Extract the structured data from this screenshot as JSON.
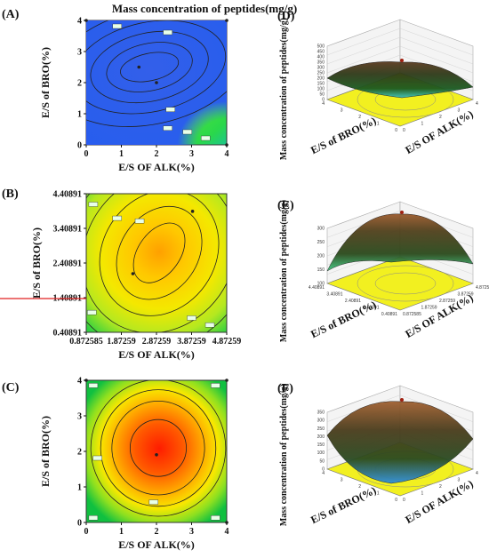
{
  "figure": {
    "top_title": "Mass concentration of  peptides(mg/g)"
  },
  "chart_data": [
    {
      "panel": "(A)",
      "type": "heatmap",
      "subtype": "contour",
      "xlabel": "E/S OF ALK(%)",
      "ylabel": "E/S of BRO(%)",
      "x_ticks": [
        "0",
        "1",
        "2",
        "3",
        "4"
      ],
      "y_ticks": [
        "0",
        "1",
        "2",
        "3",
        "4"
      ],
      "xlim": [
        0,
        4
      ],
      "ylim": [
        0,
        4
      ],
      "center": [
        1.8,
        2.5
      ],
      "design_points": [
        [
          0,
          4
        ],
        [
          4,
          4
        ],
        [
          1.5,
          2.5
        ],
        [
          2,
          2
        ],
        [
          4,
          0
        ]
      ],
      "colors": {
        "low": "#3060ff",
        "mid": "#20e040",
        "high": "#8ee020"
      }
    },
    {
      "panel": "(B)",
      "type": "heatmap",
      "subtype": "contour",
      "xlabel": "E/S OF ALK(%)",
      "ylabel": "E/S of BRO(%)",
      "x_ticks": [
        "0.872585",
        "1.87259",
        "2.87259",
        "3.87259",
        "4.87259"
      ],
      "y_ticks": [
        "0.40891",
        "1.40891",
        "2.40891",
        "3.40891",
        "4.40891"
      ],
      "xlim": [
        0.872585,
        4.87259
      ],
      "ylim": [
        0.40891,
        4.40891
      ],
      "center": [
        2.95,
        2.7
      ],
      "design_points": [
        [
          2.2,
          2.1
        ],
        [
          3.9,
          3.9
        ]
      ],
      "colors": {
        "low": "#20e040",
        "mid": "#f0e000",
        "high": "#ff9000"
      }
    },
    {
      "panel": "(C)",
      "type": "heatmap",
      "subtype": "contour",
      "xlabel": "E/S OF ALK(%)",
      "ylabel": "E/S of BRO(%)",
      "x_ticks": [
        "0",
        "1",
        "2",
        "3",
        "4"
      ],
      "y_ticks": [
        "0",
        "1",
        "2",
        "3",
        "4"
      ],
      "xlim": [
        0,
        4
      ],
      "ylim": [
        0,
        4.2
      ],
      "center": [
        2.05,
        2.2
      ],
      "design_points": [
        [
          0,
          4.2
        ],
        [
          4,
          4.2
        ],
        [
          2,
          2
        ],
        [
          4,
          0
        ]
      ],
      "colors": {
        "low": "#10c040",
        "mid": "#f0e000",
        "high": "#ff2000"
      }
    },
    {
      "panel": "(D)",
      "type": "area",
      "subtype": "surface3d",
      "xlabel": "E/S OF ALK(%)",
      "ylabel": "E/S of BRO(%)",
      "zlabel": "Mass concentration of  peptides(mg/g)",
      "z_ticks": [
        "0",
        "50",
        "100",
        "150",
        "200",
        "250",
        "300",
        "350",
        "400",
        "450",
        "500"
      ],
      "x_ticks": [
        "0",
        "1",
        "2",
        "3",
        "4"
      ],
      "y_ticks": [
        "0",
        "1",
        "2",
        "3",
        "4"
      ]
    },
    {
      "panel": "(E)",
      "type": "area",
      "subtype": "surface3d",
      "xlabel": "E/S OF ALK(%)",
      "ylabel": "E/S of BRO(%)",
      "zlabel": "Mass concentration of  peptides(mg/g)",
      "z_ticks": [
        "100",
        "150",
        "200",
        "250",
        "300"
      ],
      "x_ticks": [
        "0.872585",
        "1.87259",
        "2.87259",
        "3.87259",
        "4.87259"
      ],
      "y_ticks": [
        "0.40891",
        "1.40891",
        "2.40891",
        "3.40891",
        "4.40891"
      ]
    },
    {
      "panel": "(F)",
      "type": "area",
      "subtype": "surface3d",
      "xlabel": "E/S OF ALK(%)",
      "ylabel": "E/S of BRO(%)",
      "zlabel": "Mass concentration of  peptides(mg/g)",
      "z_ticks": [
        "0",
        "50",
        "100",
        "150",
        "200",
        "250",
        "300",
        "350"
      ],
      "x_ticks": [
        "0",
        "1",
        "2",
        "3",
        "4"
      ],
      "y_ticks": [
        "0",
        "1",
        "2",
        "3",
        "4"
      ]
    }
  ]
}
